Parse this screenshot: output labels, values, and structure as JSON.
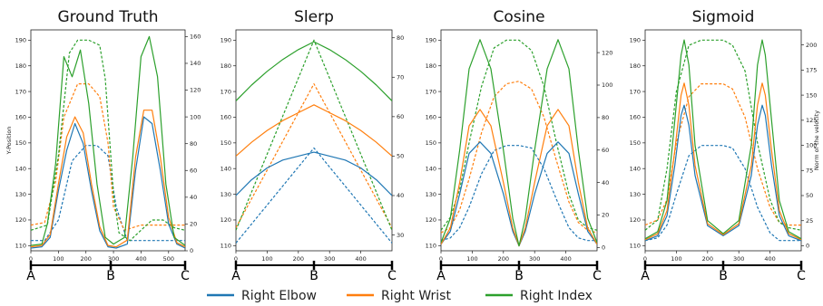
{
  "colors": {
    "Right Elbow": "#1f77b4",
    "Right Wrist": "#ff7f0e",
    "Right Index": "#2ca02c"
  },
  "legend": {
    "placement": "bottom",
    "entries": [
      {
        "name": "Right Elbow",
        "color": "#1f77b4"
      },
      {
        "name": "Right Wrist",
        "color": "#ff7f0e"
      },
      {
        "name": "Right Index",
        "color": "#2ca02c"
      }
    ]
  },
  "chart_data": [
    {
      "type": "line",
      "title": "Ground Truth",
      "ylabel": "Y-Position",
      "y2label": "",
      "xlim": [
        0,
        560
      ],
      "ylim": [
        108,
        194
      ],
      "y2lim": [
        0,
        165
      ],
      "xticks": [
        0,
        100,
        200,
        300,
        400,
        500
      ],
      "yticks": [
        110,
        120,
        130,
        140,
        150,
        160,
        170,
        180,
        190
      ],
      "y2ticks": [
        0,
        20,
        40,
        60,
        80,
        100,
        120,
        140,
        160
      ],
      "markers": [
        {
          "label": "A",
          "x": 0
        },
        {
          "label": "B",
          "x": 290
        },
        {
          "label": "C",
          "x": 560
        }
      ],
      "series": [
        {
          "name": "Right Elbow",
          "style": "dashed",
          "axis": "y",
          "x": [
            0,
            50,
            100,
            150,
            200,
            240,
            280,
            310,
            350,
            400,
            460,
            520,
            560
          ],
          "y": [
            112,
            112,
            120,
            143,
            149,
            149,
            145,
            125,
            112,
            112,
            112,
            112,
            112
          ]
        },
        {
          "name": "Right Wrist",
          "style": "dashed",
          "axis": "y",
          "x": [
            0,
            50,
            90,
            120,
            170,
            210,
            250,
            280,
            300,
            340,
            400,
            460,
            520,
            560
          ],
          "y": [
            118,
            119,
            135,
            160,
            173,
            173,
            168,
            150,
            125,
            116,
            118,
            118,
            118,
            118
          ]
        },
        {
          "name": "Right Index",
          "style": "dashed",
          "axis": "y",
          "x": [
            0,
            60,
            100,
            140,
            170,
            210,
            250,
            270,
            300,
            320,
            360,
            400,
            440,
            480,
            520,
            560
          ],
          "y": [
            116,
            118,
            145,
            185,
            190,
            190,
            188,
            175,
            130,
            115,
            112,
            116,
            120,
            120,
            117,
            116
          ]
        },
        {
          "name": "Right Elbow",
          "style": "solid",
          "axis": "y2",
          "x": [
            0,
            40,
            70,
            100,
            130,
            160,
            190,
            220,
            250,
            280,
            310,
            350,
            380,
            410,
            440,
            470,
            500,
            530,
            560
          ],
          "y": [
            2,
            3,
            10,
            45,
            75,
            95,
            80,
            45,
            15,
            3,
            2,
            5,
            60,
            100,
            95,
            60,
            20,
            5,
            2
          ]
        },
        {
          "name": "Right Wrist",
          "style": "solid",
          "axis": "y2",
          "x": [
            0,
            40,
            70,
            100,
            130,
            160,
            190,
            220,
            250,
            280,
            310,
            350,
            380,
            410,
            440,
            470,
            500,
            530,
            560
          ],
          "y": [
            3,
            4,
            12,
            50,
            85,
            100,
            88,
            50,
            18,
            4,
            3,
            8,
            70,
            105,
            105,
            70,
            25,
            6,
            3
          ]
        },
        {
          "name": "Right Index",
          "style": "solid",
          "axis": "y2",
          "x": [
            0,
            40,
            60,
            90,
            120,
            150,
            180,
            210,
            240,
            270,
            300,
            340,
            370,
            400,
            430,
            460,
            490,
            520,
            560
          ],
          "y": [
            4,
            5,
            20,
            65,
            145,
            130,
            150,
            110,
            50,
            10,
            5,
            10,
            70,
            145,
            160,
            130,
            50,
            10,
            4
          ]
        }
      ]
    },
    {
      "type": "line",
      "title": "Slerp",
      "ylabel": "",
      "y2label": "",
      "xlim": [
        0,
        500
      ],
      "ylim": [
        108,
        194
      ],
      "y2lim": [
        26,
        82
      ],
      "xticks": [
        0,
        100,
        200,
        300,
        400
      ],
      "yticks": [
        110,
        120,
        130,
        140,
        150,
        160,
        170,
        180,
        190
      ],
      "y2ticks": [
        30,
        40,
        50,
        60,
        70,
        80
      ],
      "markers": [
        {
          "label": "A",
          "x": 0
        },
        {
          "label": "B",
          "x": 250
        },
        {
          "label": "C",
          "x": 500
        }
      ],
      "series": [
        {
          "name": "Right Elbow",
          "style": "dashed",
          "axis": "y",
          "x": [
            0,
            250,
            500
          ],
          "y": [
            111,
            148,
            111
          ]
        },
        {
          "name": "Right Wrist",
          "style": "dashed",
          "axis": "y",
          "x": [
            0,
            250,
            500
          ],
          "y": [
            117,
            173,
            117
          ]
        },
        {
          "name": "Right Index",
          "style": "dashed",
          "axis": "y",
          "x": [
            0,
            250,
            500
          ],
          "y": [
            116,
            190,
            116
          ]
        },
        {
          "name": "Right Elbow",
          "style": "solid",
          "axis": "y2",
          "x": [
            0,
            50,
            100,
            150,
            200,
            250,
            300,
            350,
            400,
            450,
            500
          ],
          "y": [
            40,
            44,
            47,
            49,
            50,
            51,
            50,
            49,
            47,
            44,
            40
          ]
        },
        {
          "name": "Right Wrist",
          "style": "solid",
          "axis": "y2",
          "x": [
            0,
            50,
            100,
            150,
            200,
            250,
            300,
            350,
            400,
            450,
            500
          ],
          "y": [
            50,
            53.5,
            56.5,
            59,
            61,
            63,
            61,
            59,
            56.5,
            53.5,
            50
          ]
        },
        {
          "name": "Right Index",
          "style": "solid",
          "axis": "y2",
          "x": [
            0,
            50,
            100,
            150,
            200,
            250,
            300,
            350,
            400,
            450,
            500
          ],
          "y": [
            64,
            68,
            71.5,
            74.5,
            77,
            79,
            77,
            74.5,
            71.5,
            68,
            64
          ]
        }
      ]
    },
    {
      "type": "line",
      "title": "Cosine",
      "ylabel": "",
      "y2label": "",
      "xlim": [
        0,
        500
      ],
      "ylim": [
        108,
        194
      ],
      "y2lim": [
        -2,
        134
      ],
      "xticks": [
        0,
        100,
        200,
        300,
        400
      ],
      "yticks": [
        110,
        120,
        130,
        140,
        150,
        160,
        170,
        180,
        190
      ],
      "y2ticks": [
        0,
        20,
        40,
        60,
        80,
        100,
        120
      ],
      "markers": [
        {
          "label": "A",
          "x": 0
        },
        {
          "label": "B",
          "x": 250
        },
        {
          "label": "C",
          "x": 500
        }
      ],
      "series": [
        {
          "name": "Right Elbow",
          "style": "dashed",
          "axis": "y",
          "x": [
            0,
            30,
            60,
            90,
            130,
            170,
            210,
            250,
            290,
            330,
            370,
            410,
            440,
            470,
            500
          ],
          "y": [
            112,
            113,
            117,
            125,
            138,
            147,
            149,
            149,
            148,
            140,
            128,
            117,
            113,
            112,
            112
          ]
        },
        {
          "name": "Right Wrist",
          "style": "dashed",
          "axis": "y",
          "x": [
            0,
            30,
            60,
            90,
            130,
            170,
            210,
            250,
            290,
            330,
            370,
            410,
            440,
            470,
            500
          ],
          "y": [
            115,
            117,
            124,
            136,
            154,
            168,
            173,
            174,
            171,
            160,
            143,
            127,
            119,
            116,
            115
          ]
        },
        {
          "name": "Right Index",
          "style": "dashed",
          "axis": "y",
          "x": [
            0,
            30,
            60,
            90,
            130,
            170,
            210,
            250,
            290,
            330,
            370,
            410,
            440,
            470,
            500
          ],
          "y": [
            116,
            121,
            132,
            150,
            172,
            187,
            190,
            190,
            186,
            172,
            150,
            130,
            120,
            117,
            116
          ]
        },
        {
          "name": "Right Elbow",
          "style": "solid",
          "axis": "y2",
          "x": [
            0,
            30,
            60,
            90,
            125,
            160,
            200,
            230,
            250,
            270,
            300,
            340,
            375,
            410,
            440,
            470,
            500
          ],
          "y": [
            2,
            10,
            33,
            58,
            65,
            58,
            33,
            10,
            1,
            10,
            33,
            58,
            65,
            58,
            33,
            10,
            2
          ]
        },
        {
          "name": "Right Wrist",
          "style": "solid",
          "axis": "y2",
          "x": [
            0,
            30,
            60,
            90,
            125,
            160,
            200,
            230,
            250,
            270,
            300,
            340,
            375,
            410,
            440,
            470,
            500
          ],
          "y": [
            2,
            12,
            40,
            75,
            85,
            75,
            40,
            12,
            1,
            12,
            40,
            75,
            85,
            75,
            40,
            12,
            2
          ]
        },
        {
          "name": "Right Index",
          "style": "solid",
          "axis": "y2",
          "x": [
            0,
            30,
            60,
            90,
            125,
            160,
            200,
            230,
            250,
            270,
            300,
            340,
            375,
            410,
            440,
            470,
            500
          ],
          "y": [
            3,
            18,
            60,
            110,
            128,
            110,
            60,
            18,
            1,
            18,
            60,
            110,
            128,
            110,
            60,
            18,
            3
          ]
        }
      ]
    },
    {
      "type": "line",
      "title": "Sigmoid",
      "ylabel": "",
      "y2label": "Norm of the velocity",
      "xlim": [
        0,
        500
      ],
      "ylim": [
        108,
        194
      ],
      "y2lim": [
        -5,
        215
      ],
      "xticks": [
        0,
        100,
        200,
        300,
        400
      ],
      "yticks": [
        110,
        120,
        130,
        140,
        150,
        160,
        170,
        180,
        190
      ],
      "y2ticks": [
        0,
        25,
        50,
        75,
        100,
        125,
        150,
        175,
        200
      ],
      "markers": [
        {
          "label": "A",
          "x": 0
        },
        {
          "label": "B",
          "x": 250
        },
        {
          "label": "C",
          "x": 500
        }
      ],
      "series": [
        {
          "name": "Right Elbow",
          "style": "dashed",
          "axis": "y",
          "x": [
            0,
            40,
            70,
            100,
            140,
            180,
            220,
            250,
            280,
            320,
            360,
            400,
            430,
            460,
            500
          ],
          "y": [
            112,
            113,
            118,
            130,
            145,
            149,
            149,
            149,
            148,
            140,
            125,
            115,
            112,
            112,
            112
          ]
        },
        {
          "name": "Right Wrist",
          "style": "dashed",
          "axis": "y",
          "x": [
            0,
            40,
            70,
            100,
            140,
            180,
            220,
            250,
            280,
            320,
            360,
            400,
            430,
            460,
            500
          ],
          "y": [
            118,
            120,
            128,
            150,
            168,
            173,
            173,
            173,
            171,
            160,
            140,
            125,
            119,
            118,
            118
          ]
        },
        {
          "name": "Right Index",
          "style": "dashed",
          "axis": "y",
          "x": [
            0,
            40,
            70,
            100,
            140,
            180,
            220,
            250,
            280,
            320,
            360,
            400,
            430,
            460,
            500
          ],
          "y": [
            116,
            120,
            140,
            170,
            188,
            190,
            190,
            190,
            188,
            178,
            150,
            128,
            119,
            117,
            116
          ]
        },
        {
          "name": "Right Elbow",
          "style": "solid",
          "axis": "y2",
          "x": [
            0,
            40,
            70,
            95,
            115,
            125,
            140,
            160,
            200,
            250,
            300,
            340,
            360,
            375,
            385,
            405,
            430,
            460,
            500
          ],
          "y": [
            5,
            10,
            30,
            80,
            130,
            140,
            120,
            70,
            20,
            10,
            20,
            70,
            120,
            140,
            130,
            80,
            30,
            10,
            5
          ]
        },
        {
          "name": "Right Wrist",
          "style": "solid",
          "axis": "y2",
          "x": [
            0,
            40,
            70,
            95,
            115,
            125,
            140,
            160,
            200,
            250,
            300,
            340,
            360,
            375,
            385,
            405,
            430,
            460,
            500
          ],
          "y": [
            6,
            12,
            35,
            95,
            150,
            162,
            140,
            80,
            22,
            11,
            22,
            80,
            140,
            162,
            150,
            95,
            35,
            12,
            6
          ]
        },
        {
          "name": "Right Index",
          "style": "solid",
          "axis": "y2",
          "x": [
            0,
            40,
            70,
            95,
            115,
            125,
            140,
            160,
            200,
            250,
            300,
            340,
            360,
            375,
            385,
            405,
            430,
            460,
            500
          ],
          "y": [
            7,
            14,
            45,
            125,
            190,
            205,
            180,
            100,
            25,
            12,
            25,
            100,
            180,
            205,
            190,
            125,
            45,
            14,
            7
          ]
        }
      ]
    }
  ]
}
